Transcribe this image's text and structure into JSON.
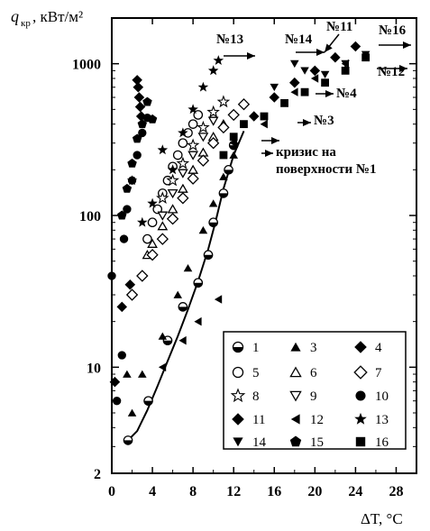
{
  "chart_data": {
    "type": "scatter",
    "y_scale": "log",
    "y_axis_label": "q",
    "y_axis_label_sub": "кр",
    "y_axis_unit": ", кВт/м²",
    "x_axis_label": "ΔT, °C",
    "xlim": [
      0,
      30
    ],
    "ylim": [
      2,
      2000
    ],
    "x_ticks": [
      "0",
      "4",
      "8",
      "12",
      "16",
      "20",
      "24",
      "28"
    ],
    "y_ticks": [
      {
        "value": 2,
        "label": "2"
      },
      {
        "value": 10,
        "label": "10"
      },
      {
        "value": 100,
        "label": "100"
      },
      {
        "value": 1000,
        "label": "1000"
      }
    ],
    "legend": [
      {
        "id": "1",
        "marker": "half-circle"
      },
      {
        "id": "3",
        "marker": "triangle-filled"
      },
      {
        "id": "4",
        "marker": "diamond-filled"
      },
      {
        "id": "5",
        "marker": "circle-open"
      },
      {
        "id": "6",
        "marker": "triangle-open"
      },
      {
        "id": "7",
        "marker": "diamond-open"
      },
      {
        "id": "8",
        "marker": "star-open"
      },
      {
        "id": "9",
        "marker": "triangle-down-open"
      },
      {
        "id": "10",
        "marker": "circle-filled"
      },
      {
        "id": "11",
        "marker": "diamond-filled"
      },
      {
        "id": "12",
        "marker": "triangle-left-filled"
      },
      {
        "id": "13",
        "marker": "star-filled"
      },
      {
        "id": "14",
        "marker": "triangle-down-filled"
      },
      {
        "id": "15",
        "marker": "pentagon-filled"
      },
      {
        "id": "16",
        "marker": "square-filled"
      }
    ],
    "annotations": {
      "n13": "№13",
      "n14": "№14",
      "n11": "№11",
      "n16": "№16",
      "n12": "№12",
      "n4": "№4",
      "n3": "№3",
      "crisis1": "кризис на",
      "crisis2": "поверхности №1"
    },
    "curve": [
      [
        1.6,
        3.3
      ],
      [
        2.5,
        3.8
      ],
      [
        3.5,
        5.2
      ],
      [
        4.5,
        7.5
      ],
      [
        5.5,
        11
      ],
      [
        6.5,
        16
      ],
      [
        7.5,
        24
      ],
      [
        8.5,
        37
      ],
      [
        9.5,
        60
      ],
      [
        10.2,
        90
      ],
      [
        11,
        150
      ],
      [
        12,
        250
      ],
      [
        13,
        360
      ]
    ],
    "series": [
      {
        "id": "1",
        "marker": "half-circle",
        "points": [
          [
            1.6,
            3.3
          ],
          [
            3.6,
            6
          ],
          [
            5.5,
            15
          ],
          [
            7,
            25
          ],
          [
            8.5,
            36
          ],
          [
            9.5,
            55
          ],
          [
            10,
            90
          ],
          [
            11,
            140
          ],
          [
            11.5,
            200
          ],
          [
            12,
            290
          ]
        ]
      },
      {
        "id": "3",
        "marker": "triangle-filled",
        "points": [
          [
            1.5,
            9
          ],
          [
            2,
            5
          ],
          [
            3,
            9
          ],
          [
            5,
            16
          ],
          [
            6.5,
            30
          ],
          [
            7.5,
            45
          ],
          [
            9,
            80
          ],
          [
            10,
            120
          ],
          [
            11,
            180
          ],
          [
            12,
            250
          ]
        ]
      },
      {
        "id": "4",
        "marker": "diamond-filled",
        "points": [
          [
            0.3,
            8
          ],
          [
            1,
            25
          ],
          [
            1.8,
            35
          ],
          [
            2.5,
            780
          ],
          [
            2.6,
            700
          ],
          [
            2.7,
            600
          ],
          [
            2.8,
            520
          ],
          [
            2.9,
            450
          ]
        ]
      },
      {
        "id": "5",
        "marker": "circle-open",
        "points": [
          [
            3.5,
            70
          ],
          [
            4,
            90
          ],
          [
            4.5,
            110
          ],
          [
            5,
            140
          ],
          [
            5.5,
            170
          ],
          [
            6,
            210
          ],
          [
            6.5,
            250
          ],
          [
            7,
            300
          ],
          [
            7.5,
            350
          ],
          [
            8,
            400
          ],
          [
            8.5,
            460
          ]
        ]
      },
      {
        "id": "6",
        "marker": "triangle-open",
        "points": [
          [
            3.5,
            55
          ],
          [
            4,
            65
          ],
          [
            5,
            85
          ],
          [
            6,
            110
          ],
          [
            7,
            150
          ],
          [
            8,
            200
          ],
          [
            9,
            260
          ],
          [
            10,
            330
          ],
          [
            11,
            400
          ]
        ]
      },
      {
        "id": "7",
        "marker": "diamond-open",
        "points": [
          [
            2,
            30
          ],
          [
            3,
            40
          ],
          [
            4,
            55
          ],
          [
            5,
            70
          ],
          [
            6,
            95
          ],
          [
            7,
            130
          ],
          [
            8,
            175
          ],
          [
            9,
            230
          ],
          [
            10,
            300
          ],
          [
            11,
            380
          ],
          [
            12,
            460
          ],
          [
            13,
            540
          ]
        ]
      },
      {
        "id": "8",
        "marker": "star-open",
        "points": [
          [
            5,
            130
          ],
          [
            6,
            170
          ],
          [
            7,
            220
          ],
          [
            8,
            290
          ],
          [
            9,
            380
          ],
          [
            10,
            480
          ],
          [
            11,
            560
          ]
        ]
      },
      {
        "id": "9",
        "marker": "triangle-down-open",
        "points": [
          [
            5,
            100
          ],
          [
            6,
            140
          ],
          [
            7,
            190
          ],
          [
            8,
            250
          ],
          [
            9,
            330
          ],
          [
            10,
            420
          ]
        ]
      },
      {
        "id": "10",
        "marker": "circle-filled",
        "points": [
          [
            0,
            40
          ],
          [
            0.5,
            6
          ],
          [
            1,
            12
          ],
          [
            1.2,
            70
          ],
          [
            1.5,
            110
          ],
          [
            2,
            170
          ],
          [
            2.5,
            250
          ],
          [
            3,
            350
          ],
          [
            3.5,
            440
          ]
        ]
      },
      {
        "id": "11",
        "marker": "diamond-filled",
        "points": [
          [
            14,
            450
          ],
          [
            16,
            600
          ],
          [
            18,
            750
          ],
          [
            20,
            900
          ],
          [
            22,
            1100
          ],
          [
            24,
            1300
          ]
        ]
      },
      {
        "id": "12",
        "marker": "triangle-left-filled",
        "points": [
          [
            5,
            10
          ],
          [
            7,
            15
          ],
          [
            8.5,
            20
          ],
          [
            10.5,
            28
          ],
          [
            12,
            300
          ],
          [
            15,
            400
          ],
          [
            18,
            650
          ],
          [
            20,
            800
          ],
          [
            23,
            1000
          ]
        ]
      },
      {
        "id": "13",
        "marker": "star-filled",
        "points": [
          [
            2,
            170
          ],
          [
            3,
            90
          ],
          [
            4,
            120
          ],
          [
            5,
            270
          ],
          [
            6,
            200
          ],
          [
            7,
            350
          ],
          [
            8,
            500
          ],
          [
            9,
            700
          ],
          [
            10,
            900
          ],
          [
            10.5,
            1050
          ]
        ]
      },
      {
        "id": "14",
        "marker": "triangle-down-filled",
        "points": [
          [
            16,
            700
          ],
          [
            18,
            1000
          ],
          [
            19,
            900
          ],
          [
            21,
            850
          ],
          [
            23,
            1000
          ],
          [
            25,
            1150
          ]
        ]
      },
      {
        "id": "15",
        "marker": "pentagon-filled",
        "points": [
          [
            1,
            100
          ],
          [
            1.5,
            150
          ],
          [
            2,
            220
          ],
          [
            2.5,
            320
          ],
          [
            3,
            400
          ],
          [
            3.5,
            560
          ],
          [
            4,
            430
          ]
        ]
      },
      {
        "id": "16",
        "marker": "square-filled",
        "points": [
          [
            11,
            250
          ],
          [
            12,
            330
          ],
          [
            13,
            400
          ],
          [
            15,
            450
          ],
          [
            17,
            550
          ],
          [
            19,
            650
          ],
          [
            21,
            750
          ],
          [
            23,
            900
          ],
          [
            25,
            1100
          ]
        ]
      }
    ],
    "grid": false,
    "legend_placement": "bottom-right"
  }
}
